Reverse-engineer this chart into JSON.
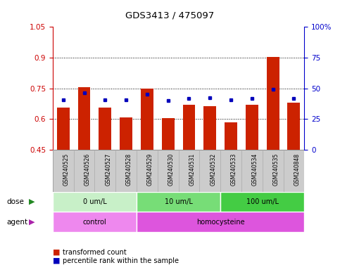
{
  "title": "GDS3413 / 475097",
  "samples": [
    "GSM240525",
    "GSM240526",
    "GSM240527",
    "GSM240528",
    "GSM240529",
    "GSM240530",
    "GSM240531",
    "GSM240532",
    "GSM240533",
    "GSM240534",
    "GSM240535",
    "GSM240848"
  ],
  "red_bars": [
    0.655,
    0.755,
    0.655,
    0.61,
    0.75,
    0.605,
    0.67,
    0.665,
    0.585,
    0.67,
    0.905,
    0.68
  ],
  "blue_dots": [
    0.695,
    0.73,
    0.695,
    0.695,
    0.72,
    0.69,
    0.7,
    0.705,
    0.695,
    0.7,
    0.745,
    0.7
  ],
  "ylim_left": [
    0.45,
    1.05
  ],
  "ylim_right": [
    0,
    100
  ],
  "yticks_left": [
    0.45,
    0.6,
    0.75,
    0.9,
    1.05
  ],
  "yticks_right": [
    0,
    25,
    50,
    75,
    100
  ],
  "ytick_labels_right": [
    "0",
    "25",
    "50",
    "75",
    "100%"
  ],
  "grid_lines": [
    0.6,
    0.75,
    0.9
  ],
  "dose_groups": [
    {
      "label": "0 um/L",
      "start": 0,
      "end": 3,
      "color": "#c8f0c8"
    },
    {
      "label": "10 um/L",
      "start": 4,
      "end": 7,
      "color": "#77dd77"
    },
    {
      "label": "100 um/L",
      "start": 8,
      "end": 11,
      "color": "#44cc44"
    }
  ],
  "agent_groups": [
    {
      "label": "control",
      "start": 0,
      "end": 3,
      "color": "#ee88ee"
    },
    {
      "label": "homocysteine",
      "start": 4,
      "end": 11,
      "color": "#dd55dd"
    }
  ],
  "bar_color": "#cc2200",
  "dot_color": "#0000bb",
  "bar_bottom": 0.45,
  "legend_red": "transformed count",
  "legend_blue": "percentile rank within the sample",
  "left_axis_color": "#cc0000",
  "right_axis_color": "#0000cc",
  "dose_arrow_color": "#228822",
  "agent_arrow_color": "#aa22aa",
  "label_bg_color": "#cccccc",
  "label_edge_color": "#aaaaaa"
}
